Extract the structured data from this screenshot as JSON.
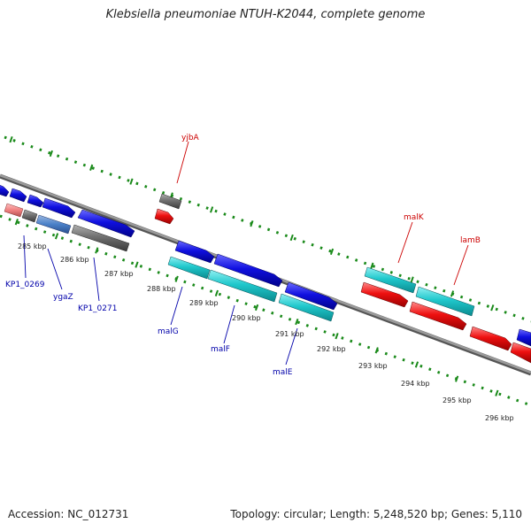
{
  "title": "Klebsiella pneumoniae NTUH-K2044, complete genome",
  "footer": {
    "accession": "Accession: NC_012731",
    "summary": "Topology: circular; Length: 5,248,520 bp; Genes: 5,110"
  },
  "ruler": {
    "ticks": [
      "285 kbp",
      "286 kbp",
      "287 kbp",
      "288 kbp",
      "289 kbp",
      "290 kbp",
      "291 kbp",
      "292 kbp",
      "293 kbp",
      "294 kbp",
      "295 kbp",
      "296 kbp"
    ]
  },
  "gene_labels": {
    "top": [
      "yjbA",
      "malK",
      "lamB"
    ],
    "bottom": [
      "KP1_0269",
      "ygaZ",
      "KP1_0271",
      "malG",
      "malF",
      "malE"
    ]
  },
  "colors": {
    "blue": "#1010e0",
    "cyan": "#20c8cc",
    "red": "#ee1010",
    "gray": "#707070",
    "pink": "#f08080",
    "dots": "#1a8a1a",
    "backbone": "#888888"
  }
}
